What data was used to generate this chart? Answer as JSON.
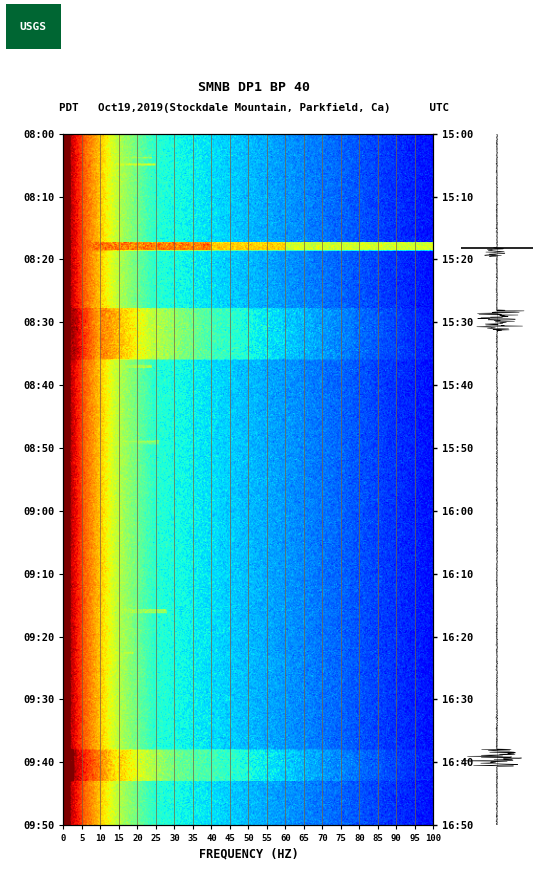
{
  "title_line1": "SMNB DP1 BP 40",
  "title_line2": "PDT   Oct19,2019(Stockdale Mountain, Parkfield, Ca)      UTC",
  "xlabel": "FREQUENCY (HZ)",
  "freq_min": 0,
  "freq_max": 100,
  "freq_ticks": [
    0,
    5,
    10,
    15,
    20,
    25,
    30,
    35,
    40,
    45,
    50,
    55,
    60,
    65,
    70,
    75,
    80,
    85,
    90,
    95,
    100
  ],
  "left_yticks": [
    "08:00",
    "08:10",
    "08:20",
    "08:30",
    "08:40",
    "08:50",
    "09:00",
    "09:10",
    "09:20",
    "09:30",
    "09:40",
    "09:50"
  ],
  "right_yticks": [
    "15:00",
    "15:10",
    "15:20",
    "15:30",
    "15:40",
    "15:50",
    "16:00",
    "16:10",
    "16:20",
    "16:30",
    "16:40",
    "16:50"
  ],
  "grid_freqs": [
    5,
    10,
    15,
    20,
    25,
    30,
    35,
    40,
    45,
    50,
    55,
    60,
    65,
    70,
    75,
    80,
    85,
    90,
    95,
    100
  ],
  "bg_color": "white",
  "usgs_green": "#006633"
}
